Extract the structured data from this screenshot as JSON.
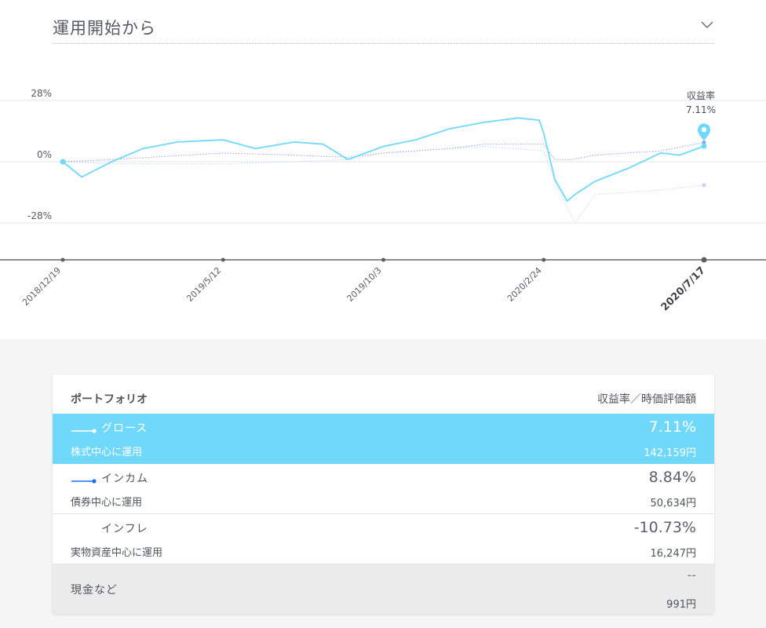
{
  "period_selector": {
    "label": "運用開始から"
  },
  "chart_data": {
    "type": "line",
    "x_ticks": [
      "2018/12/19",
      "2019/5/12",
      "2019/10/3",
      "2020/2/24",
      "2020/7/17"
    ],
    "y_ticks": [
      "28%",
      "0%",
      "-28%"
    ],
    "ylim": [
      -45,
      45
    ],
    "marker": {
      "label": "収益率",
      "value": "7.11%"
    },
    "series": [
      {
        "name": "グロース",
        "color": "#6fd8fb",
        "x": [
          "2018-12-19",
          "2019-01-05",
          "2019-02-01",
          "2019-03-01",
          "2019-04-01",
          "2019-05-12",
          "2019-06-10",
          "2019-07-15",
          "2019-08-10",
          "2019-09-01",
          "2019-10-03",
          "2019-11-01",
          "2019-12-01",
          "2020-01-01",
          "2020-02-01",
          "2020-02-20",
          "2020-02-24",
          "2020-03-05",
          "2020-03-16",
          "2020-03-23",
          "2020-04-10",
          "2020-05-10",
          "2020-06-08",
          "2020-06-25",
          "2020-07-17"
        ],
        "values": [
          0,
          -7,
          0,
          6,
          9,
          10,
          6,
          9,
          8,
          1,
          7,
          10,
          15,
          18,
          20,
          19,
          13,
          -8,
          -18,
          -15,
          -9,
          -3,
          4,
          3,
          7.11
        ]
      },
      {
        "name": "インカム",
        "color": "#8fa5ee",
        "x": [
          "2018-12-19",
          "2019-02-01",
          "2019-05-12",
          "2019-07-15",
          "2019-09-01",
          "2019-10-03",
          "2019-12-01",
          "2020-01-01",
          "2020-02-24",
          "2020-03-05",
          "2020-03-20",
          "2020-04-10",
          "2020-06-08",
          "2020-07-17"
        ],
        "values": [
          0,
          1,
          4,
          3,
          2,
          4,
          6,
          8,
          8,
          1,
          1,
          3,
          5,
          8.84
        ]
      },
      {
        "name": "インフレ",
        "color": "#c8d4f5",
        "x": [
          "2018-12-19",
          "2019-02-01",
          "2019-05-12",
          "2019-07-15",
          "2019-09-01",
          "2019-10-03",
          "2019-12-01",
          "2020-01-01",
          "2020-02-24",
          "2020-03-05",
          "2020-03-23",
          "2020-04-10",
          "2020-06-08",
          "2020-07-17"
        ],
        "values": [
          0,
          -1,
          -1,
          0,
          1,
          4,
          6,
          7,
          5,
          -9,
          -28,
          -15,
          -13,
          -10.73
        ]
      }
    ]
  },
  "portfolio": {
    "title": "ポートフォリオ",
    "header_right": "収益率／時価評価額",
    "rows": [
      {
        "name": "グロース",
        "sub": "株式中心に運用",
        "rate": "7.11%",
        "value": "142,159円",
        "color": "#ffffff"
      },
      {
        "name": "インカム",
        "sub": "債券中心に運用",
        "rate": "8.84%",
        "value": "50,634円",
        "color": "#1e6cff"
      },
      {
        "name": "インフレ",
        "sub": "実物資産中心に運用",
        "rate": "-10.73%",
        "value": "16,247円"
      }
    ],
    "cash": {
      "name": "現金など",
      "rate": "--",
      "value": "991円"
    }
  }
}
